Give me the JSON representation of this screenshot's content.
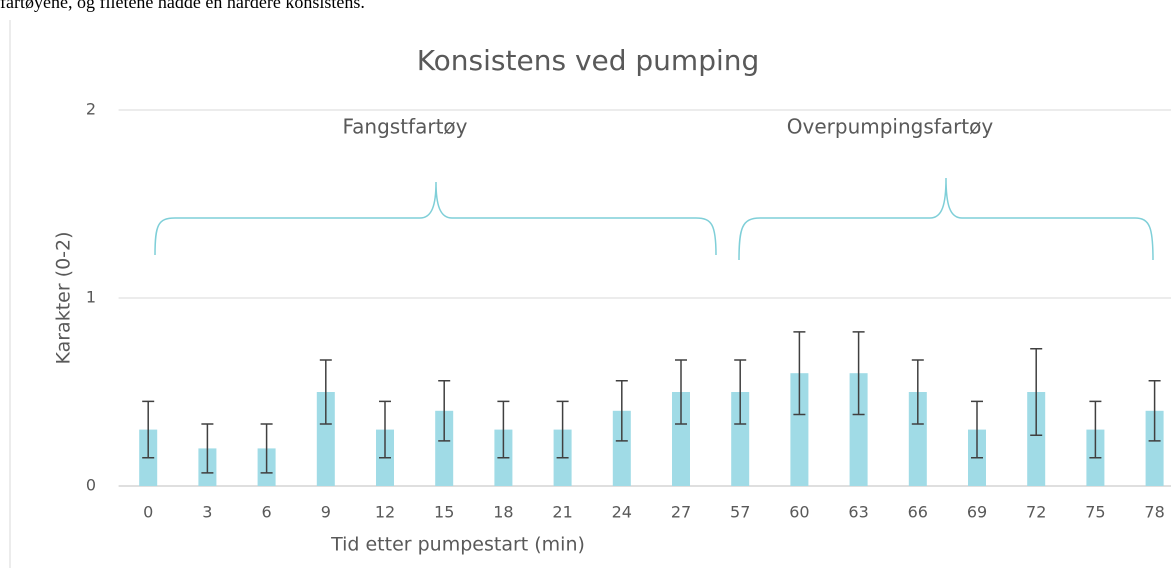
{
  "page_text": "fartøyene, og filetene hadde en hardere konsistens.",
  "chart_data": {
    "type": "bar",
    "title": "Konsistens ved pumping",
    "x_label": "Tid etter pumpestart (min)",
    "y_label": "Karakter (0-2)",
    "categories": [
      "0",
      "3",
      "6",
      "9",
      "12",
      "15",
      "18",
      "21",
      "24",
      "27",
      "57",
      "60",
      "63",
      "66",
      "69",
      "72",
      "75",
      "78"
    ],
    "values": [
      0.3,
      0.2,
      0.2,
      0.5,
      0.3,
      0.4,
      0.3,
      0.3,
      0.4,
      0.5,
      0.5,
      0.6,
      0.6,
      0.5,
      0.3,
      0.5,
      0.3,
      0.4
    ],
    "errors": [
      0.15,
      0.13,
      0.13,
      0.17,
      0.15,
      0.16,
      0.15,
      0.15,
      0.16,
      0.17,
      0.17,
      0.22,
      0.22,
      0.17,
      0.15,
      0.23,
      0.15,
      0.16
    ],
    "color": "#a0dbe6",
    "ylim": [
      0,
      2
    ],
    "yticks": [
      0,
      1,
      2
    ],
    "grid": true,
    "annotations": [
      "Fangstfartøy",
      "Overpumpingsfartøy"
    ]
  }
}
